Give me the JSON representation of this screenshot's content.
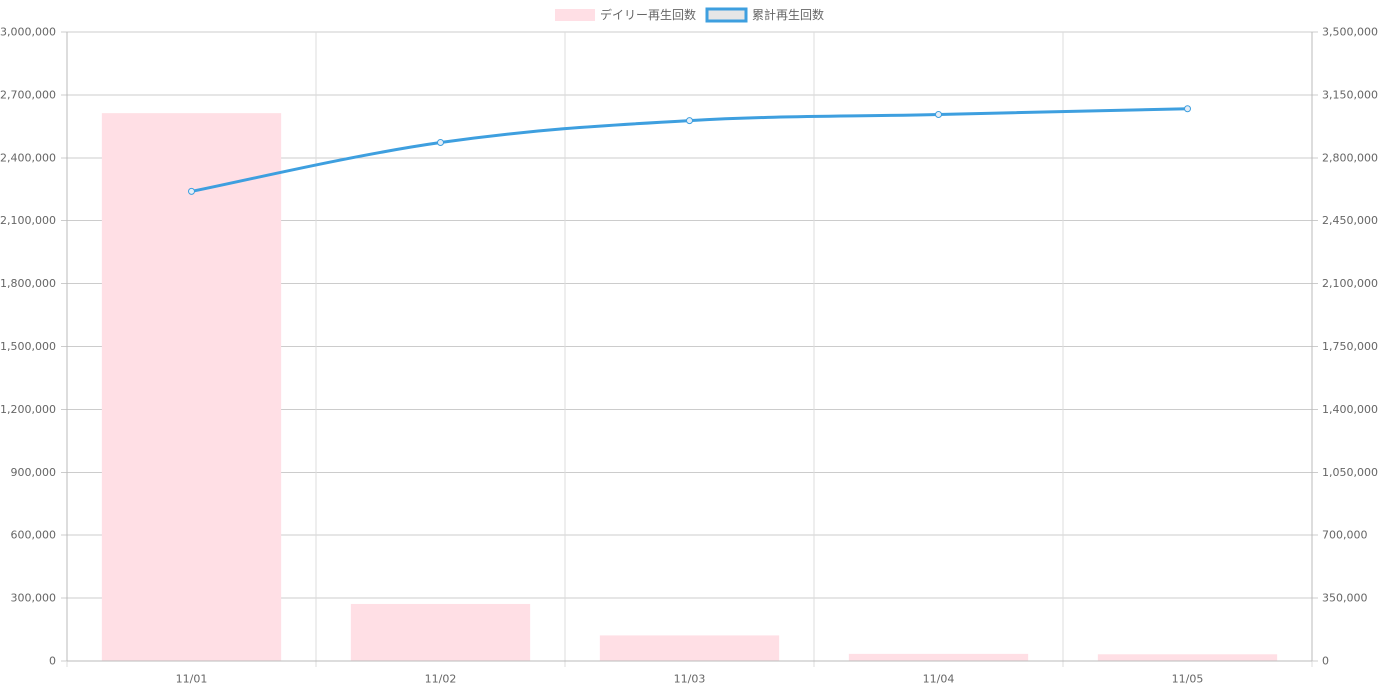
{
  "chart_data": {
    "type": "bar",
    "categories": [
      "11/01",
      "11/02",
      "11/03",
      "11/04",
      "11/05"
    ],
    "series": [
      {
        "name": "デイリー再生回数",
        "type": "bar",
        "axis": "left",
        "color": "#ffdfe5",
        "values": [
          2613000,
          272000,
          122000,
          34000,
          32000
        ]
      },
      {
        "name": "累計再生回数",
        "type": "line",
        "axis": "right",
        "color": "#3e9fdf",
        "values": [
          2613000,
          2885000,
          3007000,
          3041000,
          3073000
        ]
      }
    ],
    "y_left": {
      "min": 0,
      "max": 3000000,
      "step": 300000,
      "ticks": [
        "0",
        "300,000",
        "600,000",
        "900,000",
        "1,200,000",
        "1,500,000",
        "1,800,000",
        "2,100,000",
        "2,400,000",
        "2,700,000",
        "3,000,000"
      ]
    },
    "y_right": {
      "min": 0,
      "max": 3500000,
      "step": 350000,
      "ticks": [
        "0",
        "350,000",
        "700,000",
        "1,050,000",
        "1,400,000",
        "1,750,000",
        "2,100,000",
        "2,450,000",
        "2,800,000",
        "3,150,000",
        "3,500,000"
      ]
    },
    "legend_position": "top",
    "grid": true
  }
}
